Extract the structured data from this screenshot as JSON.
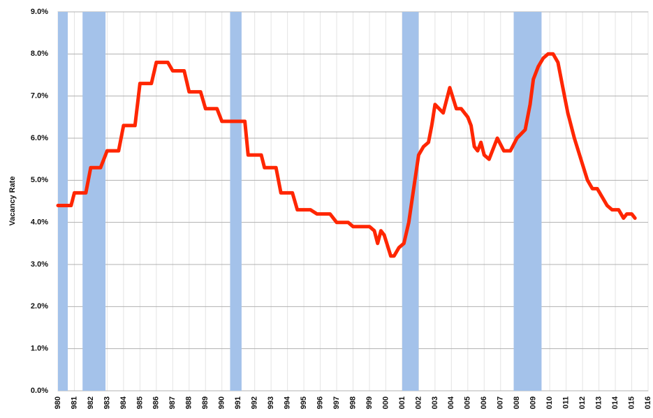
{
  "chart_data": {
    "type": "line",
    "ylabel": "Vacancy Rate",
    "grid": true,
    "recession_color": "#a4c2ea",
    "recessions": [
      [
        1980.0,
        1980.6
      ],
      [
        1981.5,
        1982.9
      ],
      [
        1990.5,
        1991.2
      ],
      [
        2001.0,
        2002.0
      ],
      [
        2007.8,
        2009.5
      ]
    ],
    "x": [
      1980.0,
      1980.8,
      1981.0,
      1981.7,
      1982.0,
      1982.6,
      1983.0,
      1983.7,
      1984.0,
      1984.7,
      1985.0,
      1985.7,
      1986.0,
      1986.7,
      1987.0,
      1987.7,
      1988.0,
      1988.7,
      1989.0,
      1989.7,
      1990.0,
      1991.4,
      1991.6,
      1992.4,
      1992.6,
      1993.3,
      1993.6,
      1994.3,
      1994.6,
      1995.4,
      1995.8,
      1996.6,
      1997.0,
      1997.7,
      1998.0,
      1999.0,
      1999.3,
      1999.5,
      1999.7,
      1999.9,
      2000.3,
      2000.5,
      2000.8,
      2001.1,
      2001.4,
      2001.7,
      2002.0,
      2002.3,
      2002.6,
      2002.8,
      2003.0,
      2003.5,
      2003.9,
      2004.3,
      2004.6,
      2005.0,
      2005.2,
      2005.4,
      2005.6,
      2005.8,
      2006.0,
      2006.3,
      2006.8,
      2007.2,
      2007.6,
      2008.0,
      2008.5,
      2008.8,
      2009.0,
      2009.3,
      2009.6,
      2009.9,
      2010.2,
      2010.5,
      2010.8,
      2011.1,
      2011.5,
      2011.9,
      2012.3,
      2012.6,
      2012.9,
      2013.2,
      2013.5,
      2013.8,
      2014.2,
      2014.5,
      2014.7,
      2015.0,
      2015.2
    ],
    "series": [
      {
        "color": "#ff2600",
        "values": [
          4.4,
          4.4,
          4.7,
          4.7,
          5.3,
          5.3,
          5.7,
          5.7,
          6.3,
          6.3,
          7.3,
          7.3,
          7.8,
          7.8,
          7.6,
          7.6,
          7.1,
          7.1,
          6.7,
          6.7,
          6.4,
          6.4,
          5.6,
          5.6,
          5.3,
          5.3,
          4.7,
          4.7,
          4.3,
          4.3,
          4.2,
          4.2,
          4.0,
          4.0,
          3.9,
          3.9,
          3.8,
          3.5,
          3.8,
          3.7,
          3.2,
          3.2,
          3.4,
          3.5,
          4.0,
          4.8,
          5.6,
          5.8,
          5.9,
          6.3,
          6.8,
          6.6,
          7.2,
          6.7,
          6.7,
          6.5,
          6.3,
          5.8,
          5.7,
          5.9,
          5.6,
          5.5,
          6.0,
          5.7,
          5.7,
          6.0,
          6.2,
          6.8,
          7.4,
          7.7,
          7.9,
          8.0,
          8.0,
          7.8,
          7.2,
          6.6,
          6.0,
          5.5,
          5.0,
          4.8,
          4.8,
          4.6,
          4.4,
          4.3,
          4.3,
          4.1,
          4.2,
          4.2,
          4.1
        ]
      }
    ],
    "xlim": [
      1980,
      2016
    ],
    "xticks": [
      {
        "value": 1980,
        "label": "980"
      },
      {
        "value": 1981,
        "label": "981"
      },
      {
        "value": 1982,
        "label": "982"
      },
      {
        "value": 1983,
        "label": "983"
      },
      {
        "value": 1984,
        "label": "984"
      },
      {
        "value": 1985,
        "label": "985"
      },
      {
        "value": 1986,
        "label": "986"
      },
      {
        "value": 1987,
        "label": "987"
      },
      {
        "value": 1988,
        "label": "988"
      },
      {
        "value": 1989,
        "label": "989"
      },
      {
        "value": 1990,
        "label": "990"
      },
      {
        "value": 1991,
        "label": "991"
      },
      {
        "value": 1992,
        "label": "992"
      },
      {
        "value": 1993,
        "label": "993"
      },
      {
        "value": 1994,
        "label": "994"
      },
      {
        "value": 1995,
        "label": "995"
      },
      {
        "value": 1996,
        "label": "996"
      },
      {
        "value": 1997,
        "label": "997"
      },
      {
        "value": 1998,
        "label": "998"
      },
      {
        "value": 1999,
        "label": "999"
      },
      {
        "value": 2000,
        "label": "000"
      },
      {
        "value": 2001,
        "label": "001"
      },
      {
        "value": 2002,
        "label": "002"
      },
      {
        "value": 2003,
        "label": "003"
      },
      {
        "value": 2004,
        "label": "004"
      },
      {
        "value": 2005,
        "label": "005"
      },
      {
        "value": 2006,
        "label": "006"
      },
      {
        "value": 2007,
        "label": "007"
      },
      {
        "value": 2008,
        "label": "008"
      },
      {
        "value": 2009,
        "label": "009"
      },
      {
        "value": 2010,
        "label": "010"
      },
      {
        "value": 2011,
        "label": "011"
      },
      {
        "value": 2012,
        "label": "012"
      },
      {
        "value": 2013,
        "label": "013"
      },
      {
        "value": 2014,
        "label": "014"
      },
      {
        "value": 2015,
        "label": "015"
      },
      {
        "value": 2016,
        "label": "016"
      }
    ],
    "ylim": [
      0,
      9
    ],
    "yticks": [
      {
        "value": 0,
        "label": "0.0%"
      },
      {
        "value": 1,
        "label": "1.0%"
      },
      {
        "value": 2,
        "label": "2.0%"
      },
      {
        "value": 3,
        "label": "3.0%"
      },
      {
        "value": 4,
        "label": "4.0%"
      },
      {
        "value": 5,
        "label": "5.0%"
      },
      {
        "value": 6,
        "label": "6.0%"
      },
      {
        "value": 7,
        "label": "7.0%"
      },
      {
        "value": 8,
        "label": "8.0%"
      },
      {
        "value": 9,
        "label": "9.0%"
      }
    ]
  }
}
